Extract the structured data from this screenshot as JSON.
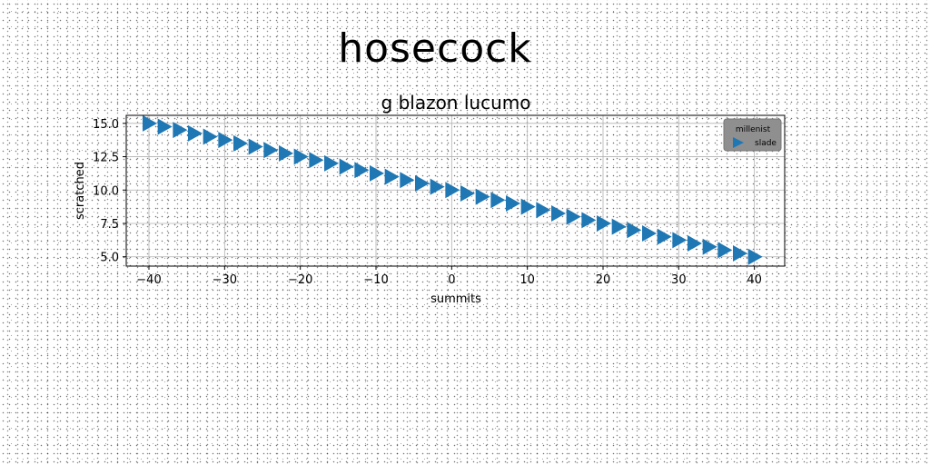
{
  "page": {
    "suptitle": "hosecock"
  },
  "chart_data": {
    "type": "scatter",
    "title": "g blazon lucumo",
    "xlabel": "summits",
    "ylabel": "scratched",
    "xlim": [
      -43,
      44
    ],
    "ylim": [
      4.3,
      15.6
    ],
    "xticks": [
      -40,
      -30,
      -20,
      -10,
      0,
      10,
      20,
      30,
      40
    ],
    "yticks": [
      5.0,
      7.5,
      10.0,
      12.5,
      15.0
    ],
    "grid": true,
    "legend": {
      "title": "millenist",
      "placement": "upper right",
      "background": "#8f8f8f"
    },
    "series": [
      {
        "name": "slade",
        "marker": "triangle-right",
        "color": "#1f77b4",
        "x_start": -40,
        "x_end": 40,
        "x_step": 2,
        "y_start": 15.0,
        "y_end": 5.0,
        "y_step": 0.25
      }
    ],
    "colors": {
      "series": "#1f77b4",
      "grid": "#b0b0b0"
    }
  }
}
